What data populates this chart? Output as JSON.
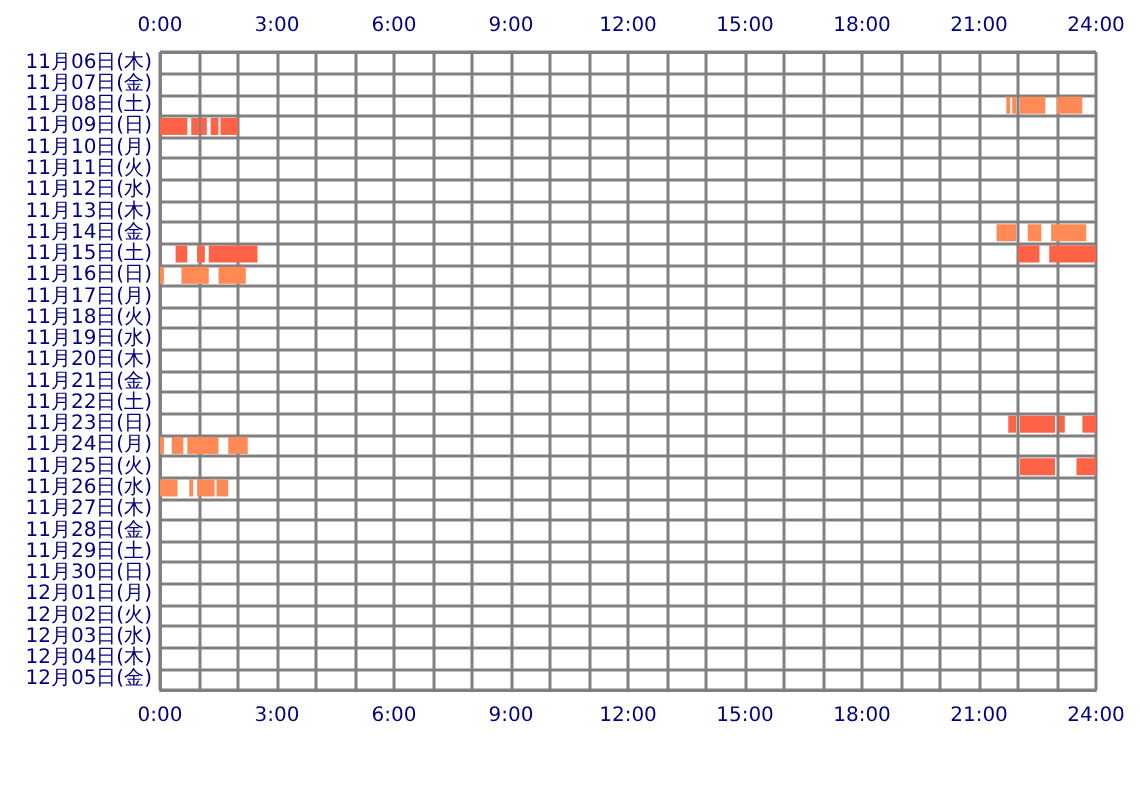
{
  "chart_data": {
    "type": "bar",
    "orientation": "horizontal",
    "grid": true,
    "categories": [
      "11月06日(木)",
      "11月07日(金)",
      "11月08日(土)",
      "11月09日(日)",
      "11月10日(月)",
      "11月11日(火)",
      "11月12日(水)",
      "11月13日(木)",
      "11月14日(金)",
      "11月15日(土)",
      "11月16日(日)",
      "11月17日(月)",
      "11月18日(火)",
      "11月19日(水)",
      "11月20日(木)",
      "11月21日(金)",
      "11月22日(土)",
      "11月23日(日)",
      "11月24日(月)",
      "11月25日(火)",
      "11月26日(水)",
      "11月27日(木)",
      "11月28日(金)",
      "11月29日(土)",
      "11月30日(日)",
      "12月01日(月)",
      "12月02日(火)",
      "12月03日(水)",
      "12月04日(木)",
      "12月05日(金)"
    ],
    "xlim": [
      0,
      24
    ],
    "xticks": [
      {
        "value": 0,
        "label": "0:00"
      },
      {
        "value": 1,
        "label": null
      },
      {
        "value": 2,
        "label": null
      },
      {
        "value": 3,
        "label": "3:00"
      },
      {
        "value": 4,
        "label": null
      },
      {
        "value": 5,
        "label": null
      },
      {
        "value": 6,
        "label": "6:00"
      },
      {
        "value": 7,
        "label": null
      },
      {
        "value": 8,
        "label": null
      },
      {
        "value": 9,
        "label": "9:00"
      },
      {
        "value": 10,
        "label": null
      },
      {
        "value": 11,
        "label": null
      },
      {
        "value": 12,
        "label": "12:00"
      },
      {
        "value": 13,
        "label": null
      },
      {
        "value": 14,
        "label": null
      },
      {
        "value": 15,
        "label": "15:00"
      },
      {
        "value": 16,
        "label": null
      },
      {
        "value": 17,
        "label": null
      },
      {
        "value": 18,
        "label": "18:00"
      },
      {
        "value": 19,
        "label": null
      },
      {
        "value": 20,
        "label": null
      },
      {
        "value": 21,
        "label": "21:00"
      },
      {
        "value": 22,
        "label": null
      },
      {
        "value": 23,
        "label": null
      },
      {
        "value": 24,
        "label": "24:00"
      }
    ],
    "x2lim": [
      0,
      24
    ],
    "x2ticks": [
      {
        "value": 0,
        "label": "0:00"
      },
      {
        "value": 1,
        "label": null
      },
      {
        "value": 2,
        "label": null
      },
      {
        "value": 3,
        "label": "3:00"
      },
      {
        "value": 4,
        "label": null
      },
      {
        "value": 5,
        "label": null
      },
      {
        "value": 6,
        "label": "6:00"
      },
      {
        "value": 7,
        "label": null
      },
      {
        "value": 8,
        "label": null
      },
      {
        "value": 9,
        "label": "9:00"
      },
      {
        "value": 10,
        "label": null
      },
      {
        "value": 11,
        "label": null
      },
      {
        "value": 12,
        "label": "12:00"
      },
      {
        "value": 13,
        "label": null
      },
      {
        "value": 14,
        "label": null
      },
      {
        "value": 15,
        "label": "15:00"
      },
      {
        "value": 16,
        "label": null
      },
      {
        "value": 17,
        "label": null
      },
      {
        "value": 18,
        "label": "18:00"
      },
      {
        "value": 19,
        "label": null
      },
      {
        "value": 20,
        "label": null
      },
      {
        "value": 21,
        "label": "21:00"
      },
      {
        "value": 22,
        "label": null
      },
      {
        "value": 23,
        "label": null
      },
      {
        "value": 24,
        "label": "24:00"
      }
    ],
    "series": [
      {
        "base": [
          null,
          null,
          21.7,
          0,
          null,
          null,
          null,
          null,
          21.45,
          0.4,
          0,
          null,
          null,
          null,
          null,
          null,
          null,
          21.75,
          0,
          22.05,
          0,
          null,
          null,
          null,
          null,
          null,
          null,
          null,
          null,
          null
        ],
        "values": [
          null,
          null,
          0.1,
          0.7,
          null,
          null,
          null,
          null,
          0.5,
          0.3,
          0.1,
          null,
          null,
          null,
          null,
          null,
          null,
          0.2,
          0.1,
          0.9,
          0.45,
          null,
          null,
          null,
          null,
          null,
          null,
          null,
          null,
          null
        ],
        "colors": [
          null,
          null,
          "#ff8a55",
          "#ff6347",
          null,
          null,
          null,
          null,
          "#ff8a55",
          "#ff6347",
          "#ff8a55",
          null,
          null,
          null,
          null,
          null,
          null,
          "#ff6347",
          "#ff8a55",
          "#ff6347",
          "#ff8a55",
          null,
          null,
          null,
          null,
          null,
          null,
          null,
          null,
          null
        ]
      },
      {
        "base": [
          null,
          null,
          21.85,
          0.8,
          null,
          null,
          null,
          null,
          22.25,
          0.95,
          0.55,
          null,
          null,
          null,
          null,
          null,
          null,
          22.05,
          0.3,
          23.5,
          0.75,
          null,
          null,
          null,
          null,
          null,
          null,
          null,
          null,
          null
        ],
        "values": [
          null,
          null,
          0.1,
          0.2,
          null,
          null,
          null,
          null,
          0.35,
          0.2,
          0.7,
          null,
          null,
          null,
          null,
          null,
          null,
          0.9,
          0.3,
          0.5,
          0.1,
          null,
          null,
          null,
          null,
          null,
          null,
          null,
          null,
          null
        ],
        "colors": [
          null,
          null,
          "#ff8a55",
          "#ff6347",
          null,
          null,
          null,
          null,
          "#ff8a55",
          "#ff6347",
          "#ff8a55",
          null,
          null,
          null,
          null,
          null,
          null,
          "#ff6347",
          "#ff8a55",
          "#ff6347",
          "#ff8a55",
          null,
          null,
          null,
          null,
          null,
          null,
          null,
          null,
          null
        ]
      },
      {
        "base": [
          null,
          null,
          22.05,
          1.05,
          null,
          null,
          null,
          null,
          22.85,
          1.25,
          1.5,
          null,
          null,
          null,
          null,
          null,
          null,
          23.05,
          0.7,
          null,
          0.95,
          null,
          null,
          null,
          null,
          null,
          null,
          null,
          null,
          null
        ],
        "values": [
          null,
          null,
          0.65,
          0.15,
          null,
          null,
          null,
          null,
          0.9,
          1.25,
          0.7,
          null,
          null,
          null,
          null,
          null,
          null,
          0.15,
          0.8,
          null,
          0.45,
          null,
          null,
          null,
          null,
          null,
          null,
          null,
          null,
          null
        ],
        "colors": [
          null,
          null,
          "#ff8a55",
          "#ff6347",
          null,
          null,
          null,
          null,
          "#ff8a55",
          "#ff6347",
          "#ff8a55",
          null,
          null,
          null,
          null,
          null,
          null,
          "#ff6347",
          "#ff8a55",
          null,
          "#ff8a55",
          null,
          null,
          null,
          null,
          null,
          null,
          null,
          null,
          null
        ]
      },
      {
        "base": [
          null,
          null,
          23.0,
          1.3,
          null,
          null,
          null,
          null,
          null,
          22.0,
          null,
          null,
          null,
          null,
          null,
          null,
          null,
          23.65,
          1.75,
          null,
          1.45,
          null,
          null,
          null,
          null,
          null,
          null,
          null,
          null,
          null
        ],
        "values": [
          null,
          null,
          0.65,
          0.2,
          null,
          null,
          null,
          null,
          null,
          0.55,
          null,
          null,
          null,
          null,
          null,
          null,
          null,
          0.35,
          0.5,
          null,
          0.3,
          null,
          null,
          null,
          null,
          null,
          null,
          null,
          null,
          null
        ],
        "colors": [
          null,
          null,
          "#ff8a55",
          "#ff6347",
          null,
          null,
          null,
          null,
          null,
          "#ff6347",
          null,
          null,
          null,
          null,
          null,
          null,
          null,
          "#ff6347",
          "#ff8a55",
          null,
          "#ff8a55",
          null,
          null,
          null,
          null,
          null,
          null,
          null,
          null,
          null
        ]
      },
      {
        "base": [
          null,
          null,
          null,
          1.55,
          null,
          null,
          null,
          null,
          null,
          22.8,
          null,
          null,
          null,
          null,
          null,
          null,
          null,
          null,
          null,
          null,
          null,
          null,
          null,
          null,
          null,
          null,
          null,
          null,
          null,
          null
        ],
        "values": [
          null,
          null,
          null,
          0.45,
          null,
          null,
          null,
          null,
          null,
          1.2,
          null,
          null,
          null,
          null,
          null,
          null,
          null,
          null,
          null,
          null,
          null,
          null,
          null,
          null,
          null,
          null,
          null,
          null,
          null,
          null
        ],
        "colors": [
          null,
          null,
          null,
          "#ff6347",
          null,
          null,
          null,
          null,
          null,
          "#ff6347",
          null,
          null,
          null,
          null,
          null,
          null,
          null,
          null,
          null,
          null,
          null,
          null,
          null,
          null,
          null,
          null,
          null,
          null,
          null,
          null
        ]
      }
    ]
  }
}
